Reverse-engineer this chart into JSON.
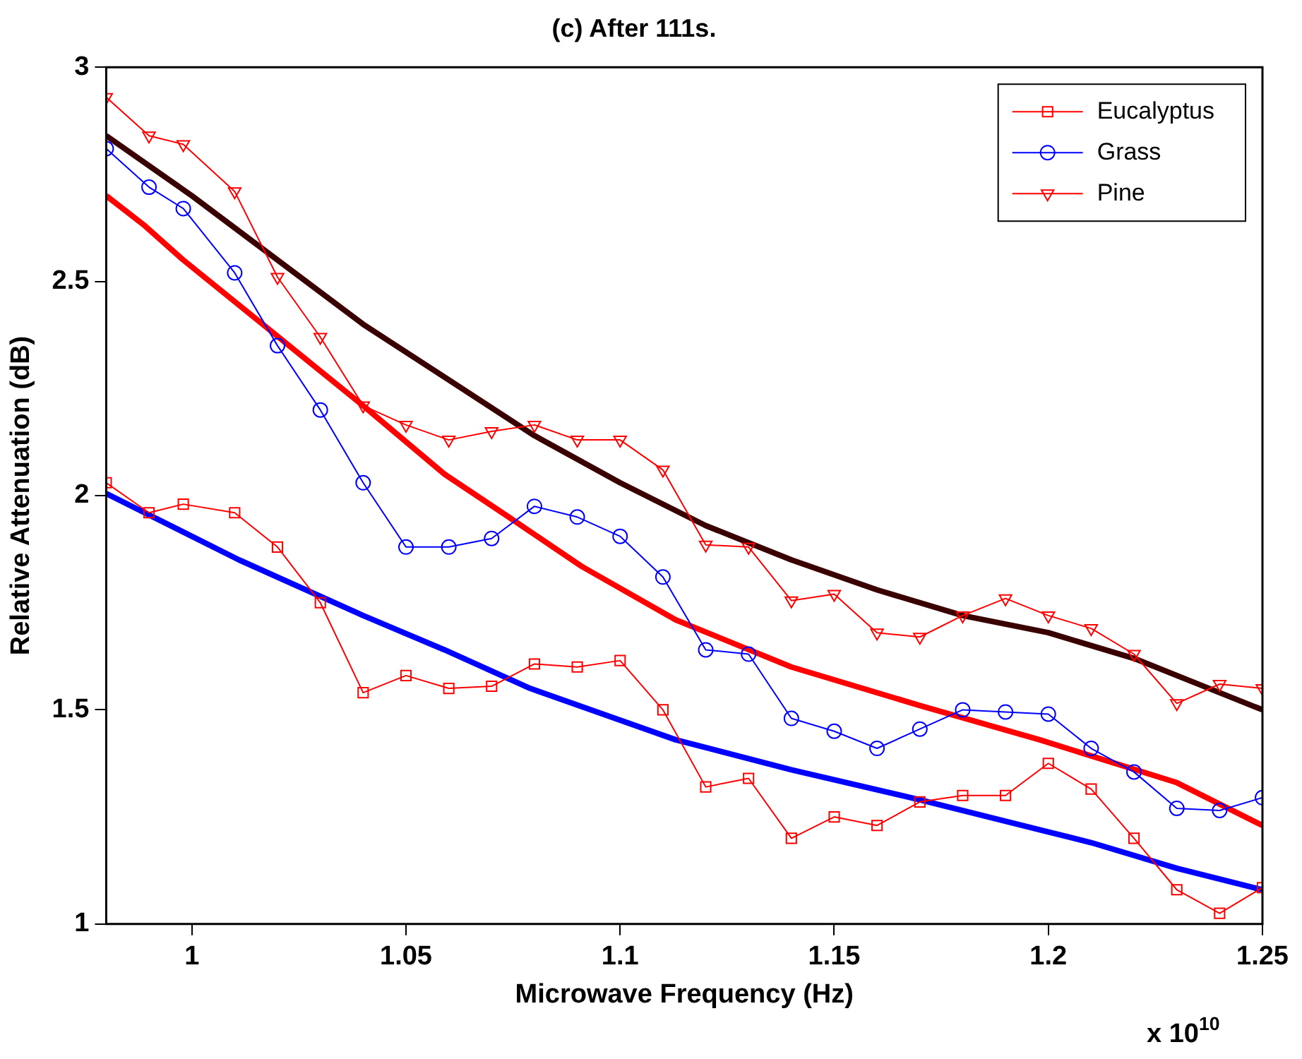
{
  "chart_data": {
    "type": "line",
    "title": "(c) After 111s.",
    "xlabel": "Microwave Frequency (Hz)",
    "ylabel": "Relative Attenuation (dB)",
    "x": [
      0.98,
      0.99,
      0.998,
      1.01,
      1.02,
      1.03,
      1.04,
      1.05,
      1.06,
      1.07,
      1.08,
      1.09,
      1.1,
      1.11,
      1.12,
      1.13,
      1.14,
      1.15,
      1.16,
      1.17,
      1.18,
      1.19,
      1.2,
      1.21,
      1.22,
      1.23,
      1.24,
      1.25
    ],
    "series": [
      {
        "name": "Eucalyptus",
        "color": "#ff0000",
        "marker": "square",
        "values": [
          2.03,
          1.96,
          1.98,
          1.96,
          1.88,
          1.75,
          1.54,
          1.58,
          1.55,
          1.555,
          1.607,
          1.6,
          1.615,
          1.5,
          1.32,
          1.34,
          1.2,
          1.25,
          1.23,
          1.285,
          1.3,
          1.3,
          1.375,
          1.315,
          1.2,
          1.08,
          1.025,
          1.085
        ]
      },
      {
        "name": "Grass",
        "color": "#0000ff",
        "marker": "circle",
        "values": [
          2.81,
          2.72,
          2.67,
          2.52,
          2.35,
          2.2,
          2.03,
          1.88,
          1.88,
          1.9,
          1.975,
          1.95,
          1.905,
          1.81,
          1.64,
          1.63,
          1.48,
          1.45,
          1.41,
          1.455,
          1.5,
          1.495,
          1.49,
          1.41,
          1.355,
          1.27,
          1.265,
          1.295
        ]
      },
      {
        "name": "Pine",
        "color": "#ff0000",
        "marker": "triangle",
        "values": [
          2.93,
          2.84,
          2.82,
          2.71,
          2.51,
          2.37,
          2.21,
          2.165,
          2.13,
          2.15,
          2.165,
          2.13,
          2.13,
          2.06,
          1.885,
          1.88,
          1.755,
          1.77,
          1.68,
          1.67,
          1.72,
          1.76,
          1.72,
          1.69,
          1.63,
          1.515,
          1.56,
          1.55
        ]
      },
      {
        "color": "#3a0000",
        "marker": "none",
        "x": [
          0.98,
          1.0,
          1.02,
          1.04,
          1.06,
          1.08,
          1.1,
          1.12,
          1.14,
          1.16,
          1.18,
          1.2,
          1.22,
          1.24,
          1.25
        ],
        "values": [
          2.84,
          2.7,
          2.55,
          2.4,
          2.27,
          2.14,
          2.03,
          1.93,
          1.85,
          1.78,
          1.72,
          1.68,
          1.62,
          1.54,
          1.5
        ]
      },
      {
        "color": "#ff0000",
        "marker": "none",
        "x": [
          0.98,
          0.989,
          0.998,
          1.019,
          1.04,
          1.059,
          1.074,
          1.091,
          1.113,
          1.14,
          1.17,
          1.198,
          1.23,
          1.25
        ],
        "values": [
          2.7,
          2.63,
          2.55,
          2.38,
          2.21,
          2.05,
          1.95,
          1.835,
          1.71,
          1.6,
          1.51,
          1.43,
          1.33,
          1.23
        ]
      },
      {
        "color": "#0000ff",
        "marker": "none",
        "x": [
          0.98,
          1.011,
          1.04,
          1.059,
          1.079,
          1.113,
          1.14,
          1.17,
          1.198,
          1.21,
          1.23,
          1.25
        ],
        "values": [
          2.005,
          1.85,
          1.72,
          1.64,
          1.55,
          1.43,
          1.36,
          1.29,
          1.22,
          1.19,
          1.13,
          1.08
        ]
      }
    ],
    "xlim": [
      0.98,
      1.25
    ],
    "xticks": [
      1,
      1.05,
      1.1,
      1.15,
      1.2,
      1.25
    ],
    "ylim": [
      1,
      3
    ],
    "yticks": [
      1,
      1.5,
      2,
      2.5,
      3
    ],
    "grid": false,
    "legend": "top right",
    "line_style": "solid",
    "annotations": [
      "x 10$^{10}$"
    ]
  }
}
